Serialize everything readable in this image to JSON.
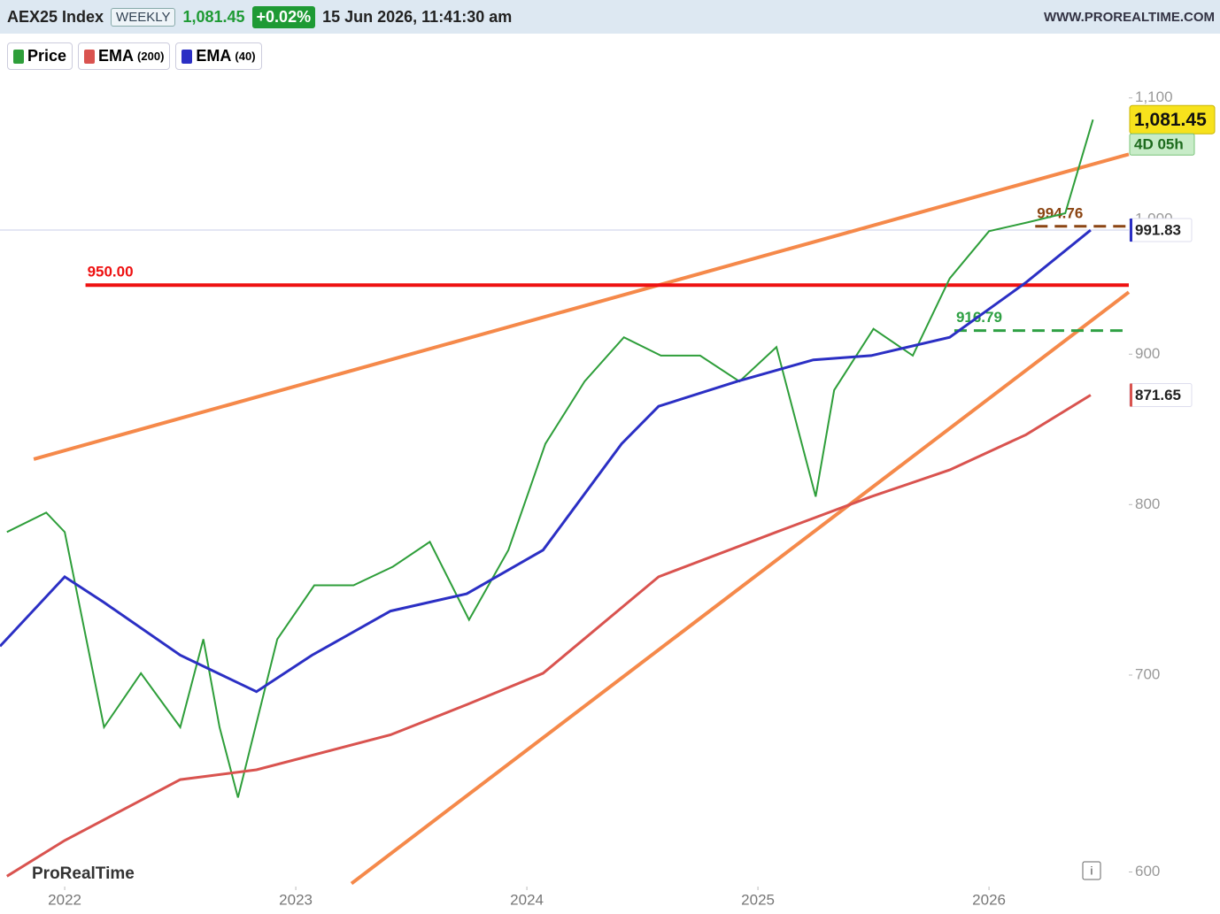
{
  "chart_data": {
    "type": "line",
    "header": {
      "symbol": "AEX25 Index",
      "period": "WEEKLY",
      "change": "+0.02%",
      "timestamp": "15 Jun 2026, 11:41:30 am",
      "site": "WWW.PROREALTIME.COM"
    },
    "watermark": "ProRealTime",
    "info_icon": "i",
    "log_scale": true,
    "xlim": [
      2021.72,
      2026.605
    ],
    "xticks": [
      2022,
      2023,
      2024,
      2025,
      2026
    ],
    "ylim": [
      594,
      1112
    ],
    "yticks": [
      600,
      700,
      800,
      900,
      {
        "value": 1000,
        "label": "1,000"
      },
      {
        "value": 1100,
        "label": "1,100"
      }
    ],
    "series": [
      {
        "name": "Price",
        "color": "#2e9e3a",
        "x": [
          2021.75,
          2021.92,
          2022.0,
          2022.17,
          2022.33,
          2022.5,
          2022.6,
          2022.67,
          2022.75,
          2022.92,
          2023.08,
          2023.25,
          2023.42,
          2023.58,
          2023.75,
          2023.92,
          2024.08,
          2024.25,
          2024.42,
          2024.58,
          2024.75,
          2024.92,
          2025.08,
          2025.25,
          2025.33,
          2025.5,
          2025.67,
          2025.83,
          2026.0,
          2026.17,
          2026.33,
          2026.45
        ],
        "values": [
          783,
          795,
          783,
          672,
          701,
          672,
          720,
          672,
          636,
          720,
          751,
          751,
          762,
          777,
          731,
          772,
          839,
          881,
          912,
          899,
          899,
          881,
          905,
          805,
          875,
          918,
          899,
          955,
          991,
          998,
          1005,
          1081.45
        ]
      },
      {
        "name": "EMA",
        "period_label": "(200)",
        "color": "#d9534f",
        "x": [
          2021.75,
          2022.0,
          2022.5,
          2022.83,
          2023.41,
          2023.74,
          2024.07,
          2024.57,
          2025.08,
          2025.49,
          2025.83,
          2026.16,
          2026.44
        ],
        "values": [
          598,
          615,
          645,
          650,
          668,
          684,
          701,
          756,
          783,
          805,
          822,
          845,
          871.65
        ]
      },
      {
        "name": "EMA",
        "period_label": "(40)",
        "color": "#2b2fc4",
        "x": [
          2021.72,
          2022.0,
          2022.17,
          2022.5,
          2022.83,
          2023.07,
          2023.41,
          2023.74,
          2024.07,
          2024.41,
          2024.57,
          2024.91,
          2025.24,
          2025.49,
          2025.83,
          2026.16,
          2026.44
        ],
        "values": [
          716,
          756,
          741,
          711,
          691,
          711,
          736,
          746,
          772,
          839,
          864,
          881,
          896,
          899,
          912,
          952,
          991.83
        ]
      }
    ],
    "last_price": {
      "value": 1081.45,
      "label": "1,081.45"
    },
    "countdown": "4D 05h",
    "ema_tags": [
      {
        "value": 991.83,
        "label": "991.83",
        "color": "#2b2fc4"
      },
      {
        "value": 871.65,
        "label": "871.65",
        "color": "#d9534f"
      }
    ],
    "levels": [
      {
        "value": 950,
        "label": "950.00",
        "color": "#ee1111",
        "x": [
          2022.09,
          2026.605
        ]
      },
      {
        "value": 994.76,
        "label": "994.76",
        "color": "#8b4513",
        "x": [
          2026.2,
          2026.605
        ]
      },
      {
        "value": 916.79,
        "label": "916.79",
        "color": "#2ea043",
        "x": [
          2025.85,
          2026.605
        ]
      }
    ],
    "trendlines": [
      {
        "color": "#f5894a",
        "x": [
          2021.866,
          2026.605
        ],
        "values": [
          829,
          1052.5
        ]
      },
      {
        "color": "#f5894a",
        "x": [
          2023.241,
          2026.605
        ],
        "values": [
          594.6,
          944.8
        ]
      }
    ]
  }
}
